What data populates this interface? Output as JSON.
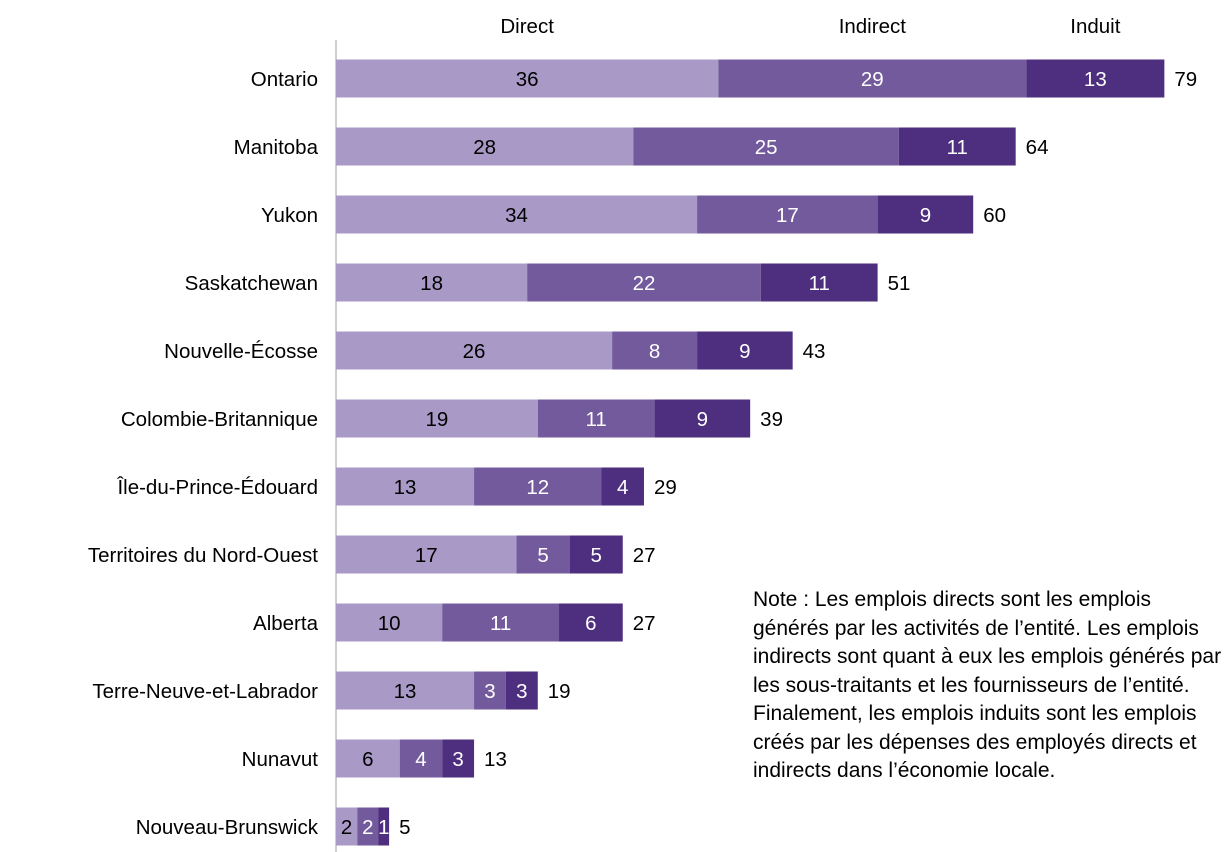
{
  "chart_data": {
    "type": "bar",
    "orientation": "horizontal",
    "stacked": true,
    "categories": [
      "Ontario",
      "Manitoba",
      "Yukon",
      "Saskatchewan",
      "Nouvelle-Écosse",
      "Colombie-Britannique",
      "Île-du-Prince-Édouard",
      "Territoires du Nord-Ouest",
      "Alberta",
      "Terre-Neuve-et-Labrador",
      "Nunavut",
      "Nouveau-Brunswick"
    ],
    "series": [
      {
        "name": "Direct",
        "color": "#a899c6",
        "label_color": "#000000",
        "values": [
          36,
          28,
          34,
          18,
          26,
          19,
          13,
          17,
          10,
          13,
          6,
          2
        ]
      },
      {
        "name": "Indirect",
        "color": "#735a9d",
        "label_color": "#ffffff",
        "values": [
          29,
          25,
          17,
          22,
          8,
          11,
          12,
          5,
          11,
          3,
          4,
          2
        ]
      },
      {
        "name": "Induit",
        "color": "#4e2e7e",
        "label_color": "#ffffff",
        "values": [
          13,
          11,
          9,
          11,
          9,
          9,
          4,
          5,
          6,
          3,
          3,
          1
        ]
      }
    ],
    "totals": [
      79,
      64,
      60,
      51,
      43,
      39,
      29,
      27,
      27,
      19,
      13,
      5
    ],
    "legend_placement": "top",
    "grid": false
  },
  "note": "Note : Les emplois directs sont les emplois générés par les activités de l’entité. Les emplois indirects sont quant à eux les emplois générés par les sous-traitants et les fournisseurs de l’entité. Finalement, les emplois induits sont les emplois créés par les dépenses des employés directs et indirects dans l’économie locale."
}
